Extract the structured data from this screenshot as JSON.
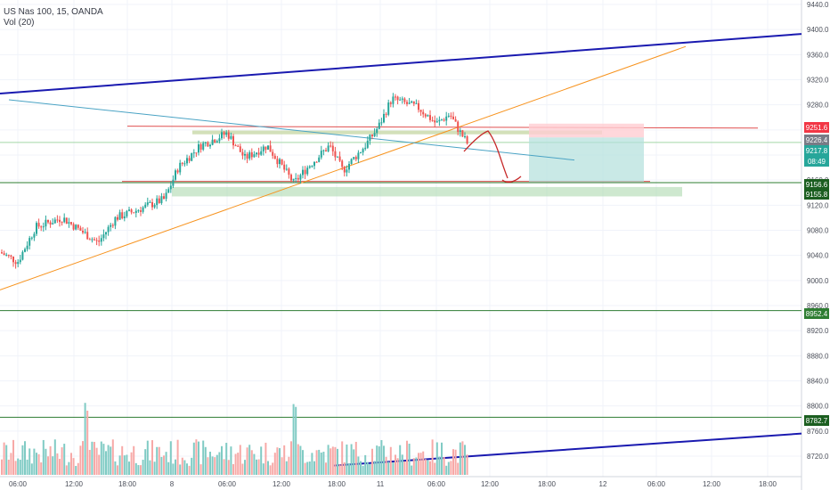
{
  "chart_data": {
    "type": "candlestick",
    "title": "US Nas 100, 15, OANDA",
    "indicator_label": "Vol (20)",
    "price_axis": {
      "ticks": [
        "9440.0",
        "9400.0",
        "9360.0",
        "9320.0",
        "9280.0",
        "9240.0",
        "9200.0",
        "9160.0",
        "9120.0",
        "9080.0",
        "9040.0",
        "9000.0",
        "8960.0",
        "8920.0",
        "8880.0",
        "8840.0",
        "8800.0",
        "8760.0",
        "8720.0"
      ],
      "ylim": [
        8700,
        9450
      ]
    },
    "time_axis": {
      "ticks": [
        "06:00",
        "12:00",
        "18:00",
        "8",
        "06:00",
        "12:00",
        "18:00",
        "11",
        "06:00",
        "12:00",
        "18:00",
        "12",
        "06:00",
        "12:00",
        "18:00"
      ]
    },
    "price_labels": [
      {
        "label": "9251.6",
        "color": "#f23645"
      },
      {
        "label": "9226.4",
        "color": "#787b86"
      },
      {
        "label": "9217.8",
        "color": "#26a69a"
      },
      {
        "label": "08:49",
        "color": "#26a69a"
      },
      {
        "label": "9156.6",
        "color": "#1b5e20"
      },
      {
        "label": "9155.8",
        "color": "#1b5e20"
      },
      {
        "label": "8952.4",
        "color": "#2e7d32"
      },
      {
        "label": "8782.7",
        "color": "#1b5e20"
      }
    ],
    "grid": true,
    "colors": {
      "up": "#26a69a",
      "down": "#ef5350",
      "vol_up": "#80cbc4",
      "vol_down": "#f7a9a7",
      "trend_blue": "#1a1ab0",
      "trend_orange": "#f7931e",
      "trend_teal": "#4aa3c4",
      "resistance": "#e05050",
      "support": "#2e7d32"
    }
  }
}
